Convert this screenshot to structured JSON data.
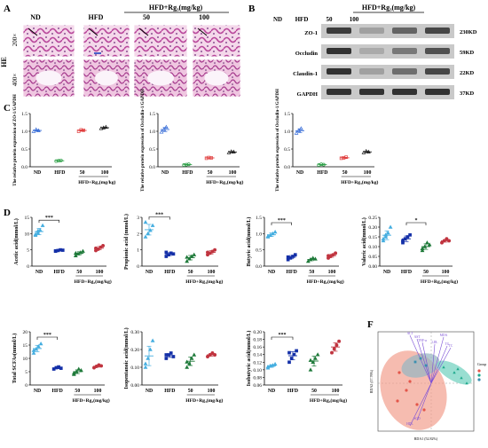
{
  "panel_letters": [
    "A",
    "B",
    "C",
    "D",
    "F"
  ],
  "group_labels": [
    "ND",
    "HFD",
    "50",
    "100"
  ],
  "treatment_label": "HFD+Rg₃(mg/kg)",
  "panelA": {
    "row_labels": [
      "200×",
      "400×"
    ],
    "stain_label": "HE",
    "columns": [
      "ND",
      "HFD",
      "50",
      "100"
    ]
  },
  "panelB": {
    "header": [
      "ND",
      "HFD",
      "50",
      "100"
    ],
    "bands": [
      {
        "name": "ZO-1",
        "size": "230KD",
        "intensity": [
          0.85,
          0.35,
          0.65,
          0.8
        ]
      },
      {
        "name": "Occludin",
        "size": "59KD",
        "intensity": [
          0.9,
          0.3,
          0.55,
          0.75
        ]
      },
      {
        "name": "Claudin-1",
        "size": "22KD",
        "intensity": [
          0.9,
          0.35,
          0.6,
          0.8
        ]
      },
      {
        "name": "GAPDH",
        "size": "37KD",
        "intensity": [
          0.9,
          0.9,
          0.9,
          0.9
        ]
      }
    ]
  },
  "colors": {
    "ND": "#3a6fd8",
    "HFD": "#2ea048",
    "R50": "#e03c3c",
    "R100": "#202020",
    "sig": "#000000"
  },
  "chart_data": [
    {
      "type": "scatter",
      "panel": "C",
      "ylabel": "The relative protein expression of ZO-1/GAPDH",
      "categories": [
        "ND",
        "HFD",
        "50",
        "100"
      ],
      "ylim": [
        0,
        1.5
      ],
      "yticks": [
        0.0,
        0.5,
        1.0,
        1.5
      ],
      "series": [
        {
          "values": [
            [
              1.0,
              1.05,
              1.02
            ],
            [
              0.16,
              0.17,
              0.18
            ],
            [
              1.0,
              1.04,
              1.03
            ],
            [
              1.08,
              1.1,
              1.12
            ]
          ]
        }
      ]
    },
    {
      "type": "scatter",
      "panel": "C",
      "ylabel": "The relative protein expression of Occludin-1/GAPDH",
      "categories": [
        "ND",
        "HFD",
        "50",
        "100"
      ],
      "ylim": [
        0,
        1.5
      ],
      "yticks": [
        0.0,
        0.5,
        1.0,
        1.5
      ],
      "series": [
        {
          "values": [
            [
              0.98,
              1.05,
              1.12
            ],
            [
              0.05,
              0.06,
              0.07
            ],
            [
              0.24,
              0.26,
              0.25
            ],
            [
              0.4,
              0.43,
              0.42
            ]
          ]
        }
      ]
    },
    {
      "type": "scatter",
      "panel": "C",
      "ylabel": "The relative protein expression of Occludin-1/GAPDH",
      "categories": [
        "ND",
        "HFD",
        "50",
        "100"
      ],
      "ylim": [
        0,
        1.5
      ],
      "yticks": [
        0.0,
        0.5,
        1.0,
        1.5
      ],
      "series": [
        {
          "values": [
            [
              0.95,
              1.02,
              1.08
            ],
            [
              0.05,
              0.07,
              0.06
            ],
            [
              0.24,
              0.25,
              0.27
            ],
            [
              0.4,
              0.44,
              0.42
            ]
          ]
        }
      ]
    },
    {
      "type": "scatter",
      "panel": "D",
      "ylabel": "Acetic acid(mmol/L)",
      "categories": [
        "ND",
        "HFD",
        "50",
        "100"
      ],
      "ylim": [
        0,
        15
      ],
      "yticks": [
        0,
        5,
        10,
        15
      ],
      "significance": [
        {
          "from": 0,
          "to": 1,
          "label": "***"
        }
      ],
      "series": [
        {
          "values": [
            [
              9.5,
              10.2,
              11.0,
              12.5,
              9.8,
              10.8
            ],
            [
              4.6,
              4.8,
              5.0,
              4.9,
              4.7
            ],
            [
              3.2,
              3.8,
              4.2,
              4.6,
              4.0
            ],
            [
              4.8,
              5.2,
              5.8,
              6.3,
              5.5
            ]
          ]
        }
      ]
    },
    {
      "type": "scatter",
      "panel": "D",
      "ylabel": "Propionic acid (mmol/L)",
      "categories": [
        "ND",
        "HFD",
        "50",
        "100"
      ],
      "ylim": [
        0,
        3
      ],
      "yticks": [
        0,
        1,
        2,
        3
      ],
      "significance": [
        {
          "from": 0,
          "to": 1,
          "label": "***"
        }
      ],
      "series": [
        {
          "values": [
            [
              1.8,
              2.0,
              2.2,
              2.5,
              2.7
            ],
            [
              0.6,
              0.7,
              0.8,
              0.75,
              0.85
            ],
            [
              0.3,
              0.45,
              0.6,
              0.7,
              0.55
            ],
            [
              0.7,
              0.8,
              0.9,
              1.0,
              0.85
            ]
          ]
        }
      ]
    },
    {
      "type": "scatter",
      "panel": "D",
      "ylabel": "Butyric acid(mmol/L)",
      "categories": [
        "ND",
        "HFD",
        "50",
        "100"
      ],
      "ylim": [
        0,
        1.5
      ],
      "yticks": [
        0.0,
        0.5,
        1.0,
        1.5
      ],
      "significance": [
        {
          "from": 0,
          "to": 1,
          "label": "***"
        }
      ],
      "series": [
        {
          "values": [
            [
              0.9,
              0.95,
              1.0,
              1.05,
              0.92
            ],
            [
              0.2,
              0.25,
              0.3,
              0.35,
              0.28
            ],
            [
              0.15,
              0.2,
              0.25,
              0.22
            ],
            [
              0.25,
              0.3,
              0.35,
              0.4,
              0.32
            ]
          ]
        }
      ]
    },
    {
      "type": "scatter",
      "panel": "D",
      "ylabel": "Valeric acid(mmol/L)",
      "categories": [
        "ND",
        "HFD",
        "50",
        "100"
      ],
      "ylim": [
        0,
        0.25
      ],
      "yticks": [
        0.0,
        0.05,
        0.1,
        0.15,
        0.2,
        0.25
      ],
      "significance": [
        {
          "from": 1,
          "to": 2,
          "label": "*"
        }
      ],
      "series": [
        {
          "values": [
            [
              0.13,
              0.15,
              0.17,
              0.2,
              0.14,
              0.16
            ],
            [
              0.12,
              0.14,
              0.15,
              0.16,
              0.13
            ],
            [
              0.08,
              0.1,
              0.12,
              0.11,
              0.09
            ],
            [
              0.12,
              0.13,
              0.14,
              0.13
            ]
          ]
        }
      ]
    },
    {
      "type": "scatter",
      "panel": "D",
      "ylabel": "Total SCFAs(mmol/L)",
      "categories": [
        "ND",
        "HFD",
        "50",
        "100"
      ],
      "ylim": [
        0,
        20
      ],
      "yticks": [
        0,
        5,
        10,
        15,
        20
      ],
      "significance": [
        {
          "from": 0,
          "to": 1,
          "label": "***"
        }
      ],
      "series": [
        {
          "values": [
            [
              12.0,
              13.5,
              14.5,
              15.5,
              13.0
            ],
            [
              6.0,
              6.5,
              6.8,
              6.3
            ],
            [
              4.0,
              5.0,
              6.0,
              5.5,
              4.5
            ],
            [
              6.5,
              7.0,
              7.5,
              7.2
            ]
          ]
        }
      ]
    },
    {
      "type": "scatter",
      "panel": "D",
      "ylabel": "Isopentanoic acid(mmol/L)",
      "categories": [
        "ND",
        "HFD",
        "50",
        "100"
      ],
      "ylim": [
        0,
        0.3
      ],
      "yticks": [
        0.0,
        0.1,
        0.2,
        0.3
      ],
      "series": [
        {
          "values": [
            [
              0.1,
              0.15,
              0.2,
              0.25,
              0.12
            ],
            [
              0.15,
              0.17,
              0.18,
              0.16,
              0.17
            ],
            [
              0.1,
              0.12,
              0.15,
              0.17,
              0.13
            ],
            [
              0.16,
              0.17,
              0.18,
              0.17
            ]
          ]
        }
      ]
    },
    {
      "type": "scatter",
      "panel": "D",
      "ylabel": "Isobutyric acid(mmol/L)",
      "categories": [
        "ND",
        "HFD",
        "50",
        "100"
      ],
      "ylim": [
        0.06,
        0.2
      ],
      "yticks": [
        0.06,
        0.08,
        0.1,
        0.12,
        0.14,
        0.16,
        0.18,
        0.2
      ],
      "significance": [
        {
          "from": 0,
          "to": 1,
          "label": "***"
        }
      ],
      "series": [
        {
          "values": [
            [
              0.105,
              0.11,
              0.112,
              0.115,
              0.108
            ],
            [
              0.12,
              0.13,
              0.14,
              0.15,
              0.145
            ],
            [
              0.1,
              0.12,
              0.13,
              0.14,
              0.125
            ],
            [
              0.145,
              0.155,
              0.165,
              0.175
            ]
          ]
        }
      ]
    }
  ],
  "panelF": {
    "type": "biplot",
    "xlabel": "RDA1 (52.82%)",
    "ylabel": "RDA2 (17.76%)",
    "legend_title": "Group",
    "vector_labels": [
      "ALT",
      "AST",
      "MDA",
      "TNF-α",
      "LDL",
      "TG",
      "TC",
      "SOD",
      "HDL"
    ]
  }
}
